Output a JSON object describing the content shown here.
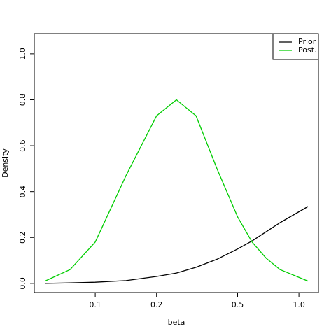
{
  "chart_data": {
    "type": "line",
    "xlabel": "beta",
    "ylabel": "Density",
    "xlog": true,
    "x": [
      0.0566,
      0.0752,
      0.1,
      0.1416,
      0.2,
      0.2503,
      0.3125,
      0.396,
      0.5,
      0.589,
      0.69,
      0.808,
      1.108
    ],
    "series": [
      {
        "name": "Prior",
        "color": "#000000",
        "values": [
          0,
          0.002,
          0.005,
          0.012,
          0.03,
          0.045,
          0.07,
          0.105,
          0.15,
          0.185,
          0.225,
          0.265,
          0.335
        ]
      },
      {
        "name": "Post.",
        "color": "#00cd00",
        "values": [
          0.01,
          0.06,
          0.18,
          0.47,
          0.73,
          0.8,
          0.73,
          0.5,
          0.29,
          0.18,
          0.11,
          0.06,
          0.01
        ]
      }
    ],
    "xlim": [
      0.0502,
      1.247
    ],
    "ylim": [
      -0.04,
      1.088
    ],
    "xticks": [
      0.1,
      0.2,
      0.5,
      {
        "value": 1,
        "label": "1.0"
      }
    ],
    "yticks": [
      {
        "value": 0,
        "label": "0.0"
      },
      0.2,
      0.4,
      0.6,
      0.8,
      {
        "value": 1,
        "label": "1.0"
      }
    ],
    "legend": "top-right"
  }
}
